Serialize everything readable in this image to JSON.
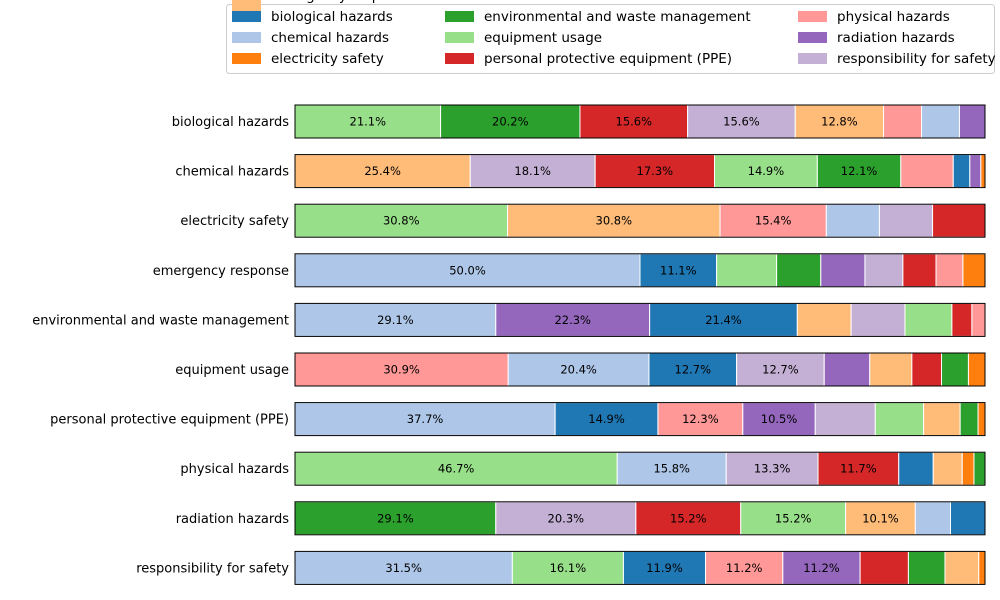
{
  "chart_data": {
    "type": "bar",
    "orientation": "horizontal",
    "stacked": "percent",
    "legend_position": "top",
    "colors": {
      "biological hazards": "#1f77b4",
      "chemical hazards": "#aec7e8",
      "electricity safety": "#ff7f0e",
      "emergency response": "#ffbb78",
      "environmental and waste management": "#2ca02c",
      "equipment usage": "#98df8a",
      "personal protective equipment (PPE)": "#d62728",
      "physical hazards": "#ff9896",
      "radiation hazards": "#9467bd",
      "responsibility for safety": "#c5b0d5"
    },
    "legend": [
      "biological hazards",
      "chemical hazards",
      "electricity safety",
      "emergency response",
      "environmental and waste management",
      "equipment usage",
      "personal protective equipment (PPE)",
      "physical hazards",
      "radiation hazards",
      "responsibility for safety"
    ],
    "rows": [
      {
        "category": "biological hazards",
        "segments": [
          {
            "name": "equipment usage",
            "value": 21.1,
            "label": "21.1%"
          },
          {
            "name": "environmental and waste management",
            "value": 20.2,
            "label": "20.2%"
          },
          {
            "name": "personal protective equipment (PPE)",
            "value": 15.6,
            "label": "15.6%"
          },
          {
            "name": "responsibility for safety",
            "value": 15.6,
            "label": "15.6%"
          },
          {
            "name": "emergency response",
            "value": 12.8,
            "label": "12.8%"
          },
          {
            "name": "physical hazards",
            "value": 5.5
          },
          {
            "name": "chemical hazards",
            "value": 5.5
          },
          {
            "name": "radiation hazards",
            "value": 3.7
          }
        ]
      },
      {
        "category": "chemical hazards",
        "segments": [
          {
            "name": "emergency response",
            "value": 25.4,
            "label": "25.4%"
          },
          {
            "name": "responsibility for safety",
            "value": 18.1,
            "label": "18.1%"
          },
          {
            "name": "personal protective equipment (PPE)",
            "value": 17.3,
            "label": "17.3%"
          },
          {
            "name": "equipment usage",
            "value": 14.9,
            "label": "14.9%"
          },
          {
            "name": "environmental and waste management",
            "value": 12.1,
            "label": "12.1%"
          },
          {
            "name": "physical hazards",
            "value": 7.6
          },
          {
            "name": "biological hazards",
            "value": 2.4
          },
          {
            "name": "radiation hazards",
            "value": 1.6
          },
          {
            "name": "electricity safety",
            "value": 0.6
          }
        ]
      },
      {
        "category": "electricity safety",
        "segments": [
          {
            "name": "equipment usage",
            "value": 30.8,
            "label": "30.8%"
          },
          {
            "name": "emergency response",
            "value": 30.8,
            "label": "30.8%"
          },
          {
            "name": "physical hazards",
            "value": 15.4,
            "label": "15.4%"
          },
          {
            "name": "chemical hazards",
            "value": 7.7
          },
          {
            "name": "responsibility for safety",
            "value": 7.7
          },
          {
            "name": "personal protective equipment (PPE)",
            "value": 7.6
          }
        ]
      },
      {
        "category": "emergency response",
        "segments": [
          {
            "name": "chemical hazards",
            "value": 50.0,
            "label": "50.0%"
          },
          {
            "name": "biological hazards",
            "value": 11.1,
            "label": "11.1%"
          },
          {
            "name": "equipment usage",
            "value": 8.7
          },
          {
            "name": "environmental and waste management",
            "value": 6.4
          },
          {
            "name": "radiation hazards",
            "value": 6.4
          },
          {
            "name": "responsibility for safety",
            "value": 5.5
          },
          {
            "name": "personal protective equipment (PPE)",
            "value": 4.8
          },
          {
            "name": "physical hazards",
            "value": 3.9
          },
          {
            "name": "electricity safety",
            "value": 3.2
          }
        ]
      },
      {
        "category": "environmental and waste management",
        "segments": [
          {
            "name": "chemical hazards",
            "value": 29.1,
            "label": "29.1%"
          },
          {
            "name": "radiation hazards",
            "value": 22.3,
            "label": "22.3%"
          },
          {
            "name": "biological hazards",
            "value": 21.4,
            "label": "21.4%"
          },
          {
            "name": "emergency response",
            "value": 7.8
          },
          {
            "name": "responsibility for safety",
            "value": 7.8
          },
          {
            "name": "equipment usage",
            "value": 6.8
          },
          {
            "name": "personal protective equipment (PPE)",
            "value": 2.9
          },
          {
            "name": "physical hazards",
            "value": 1.9
          }
        ]
      },
      {
        "category": "equipment usage",
        "segments": [
          {
            "name": "physical hazards",
            "value": 30.9,
            "label": "30.9%"
          },
          {
            "name": "chemical hazards",
            "value": 20.4,
            "label": "20.4%"
          },
          {
            "name": "biological hazards",
            "value": 12.7,
            "label": "12.7%"
          },
          {
            "name": "responsibility for safety",
            "value": 12.7,
            "label": "12.7%"
          },
          {
            "name": "radiation hazards",
            "value": 6.6
          },
          {
            "name": "emergency response",
            "value": 6.1
          },
          {
            "name": "personal protective equipment (PPE)",
            "value": 4.3
          },
          {
            "name": "environmental and waste management",
            "value": 3.9
          },
          {
            "name": "electricity safety",
            "value": 2.4
          }
        ]
      },
      {
        "category": "personal protective equipment (PPE)",
        "segments": [
          {
            "name": "chemical hazards",
            "value": 37.7,
            "label": "37.7%"
          },
          {
            "name": "biological hazards",
            "value": 14.9,
            "label": "14.9%"
          },
          {
            "name": "physical hazards",
            "value": 12.3,
            "label": "12.3%"
          },
          {
            "name": "radiation hazards",
            "value": 10.5,
            "label": "10.5%"
          },
          {
            "name": "responsibility for safety",
            "value": 8.7
          },
          {
            "name": "equipment usage",
            "value": 7.0
          },
          {
            "name": "emergency response",
            "value": 5.3
          },
          {
            "name": "environmental and waste management",
            "value": 2.6
          },
          {
            "name": "electricity safety",
            "value": 1.0
          }
        ]
      },
      {
        "category": "physical hazards",
        "segments": [
          {
            "name": "equipment usage",
            "value": 46.7,
            "label": "46.7%"
          },
          {
            "name": "chemical hazards",
            "value": 15.8,
            "label": "15.8%"
          },
          {
            "name": "responsibility for safety",
            "value": 13.3,
            "label": "13.3%"
          },
          {
            "name": "personal protective equipment (PPE)",
            "value": 11.7,
            "label": "11.7%"
          },
          {
            "name": "biological hazards",
            "value": 5.0
          },
          {
            "name": "emergency response",
            "value": 4.2
          },
          {
            "name": "electricity safety",
            "value": 1.7
          },
          {
            "name": "environmental and waste management",
            "value": 1.6
          }
        ]
      },
      {
        "category": "radiation hazards",
        "segments": [
          {
            "name": "environmental and waste management",
            "value": 29.1,
            "label": "29.1%"
          },
          {
            "name": "responsibility for safety",
            "value": 20.3,
            "label": "20.3%"
          },
          {
            "name": "personal protective equipment (PPE)",
            "value": 15.2,
            "label": "15.2%"
          },
          {
            "name": "equipment usage",
            "value": 15.2,
            "label": "15.2%"
          },
          {
            "name": "emergency response",
            "value": 10.1,
            "label": "10.1%"
          },
          {
            "name": "chemical hazards",
            "value": 5.1
          },
          {
            "name": "biological hazards",
            "value": 5.0
          }
        ]
      },
      {
        "category": "responsibility for safety",
        "segments": [
          {
            "name": "chemical hazards",
            "value": 31.5,
            "label": "31.5%"
          },
          {
            "name": "equipment usage",
            "value": 16.1,
            "label": "16.1%"
          },
          {
            "name": "biological hazards",
            "value": 11.9,
            "label": "11.9%"
          },
          {
            "name": "physical hazards",
            "value": 11.2,
            "label": "11.2%"
          },
          {
            "name": "radiation hazards",
            "value": 11.2,
            "label": "11.2%"
          },
          {
            "name": "personal protective equipment (PPE)",
            "value": 7.0
          },
          {
            "name": "environmental and waste management",
            "value": 5.3
          },
          {
            "name": "emergency response",
            "value": 4.9
          },
          {
            "name": "electricity safety",
            "value": 0.9
          }
        ]
      }
    ]
  }
}
